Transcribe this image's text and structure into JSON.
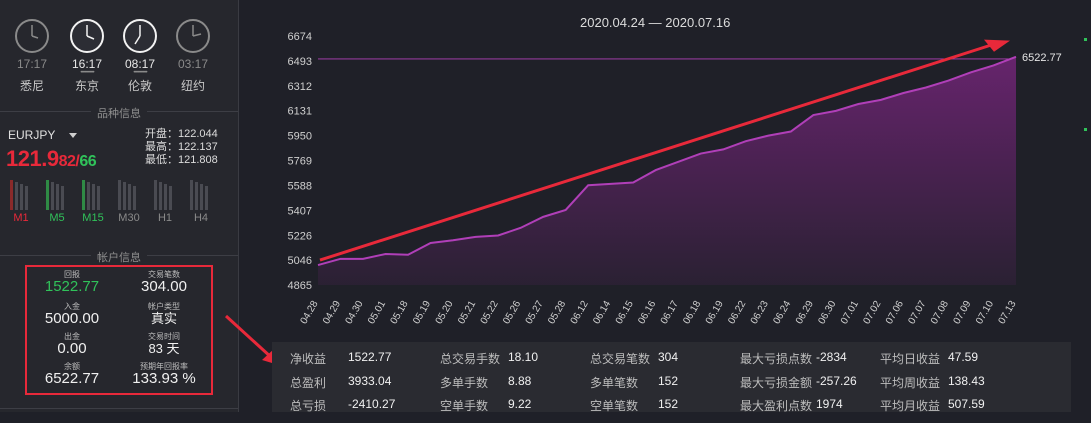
{
  "clocks": [
    {
      "time": "17:17",
      "city": "悉尼",
      "active": false
    },
    {
      "time": "16:17",
      "city": "东京",
      "active": true
    },
    {
      "time": "08:17",
      "city": "伦敦",
      "active": true
    },
    {
      "time": "03:17",
      "city": "纽约",
      "active": false
    }
  ],
  "sections": {
    "instrument": "品种信息",
    "account": "帐户信息"
  },
  "instrument": {
    "symbol": "EURJPY",
    "price_main": "121.9",
    "price_bid_tail": "82",
    "price_sep": "/",
    "price_ask_tail": "66",
    "open": "开盘：122.044",
    "high": "最高：122.137",
    "low": "最低：121.808",
    "timeframes": [
      {
        "label": "M1",
        "color": "#e8293a"
      },
      {
        "label": "M5",
        "color": "#30c25a"
      },
      {
        "label": "M15",
        "color": "#30c25a"
      },
      {
        "label": "M30",
        "color": "#8a8a8a"
      },
      {
        "label": "H1",
        "color": "#8a8a8a"
      },
      {
        "label": "H4",
        "color": "#8a8a8a"
      }
    ]
  },
  "account": {
    "profit_label": "回报",
    "profit": "1522.77",
    "trades_label": "交易笔数",
    "trades": "304.00",
    "deposit_label": "入金",
    "deposit": "5000.00",
    "type_label": "帐户类型",
    "type": "真实",
    "withdraw_label": "出金",
    "withdraw": "0.00",
    "time_label": "交易时间",
    "time": "83 天",
    "balance_label": "余额",
    "balance": "6522.77",
    "annual_label": "预期年回报率",
    "annual": "133.93 %"
  },
  "chart_data": {
    "type": "area",
    "title": "2020.04.24 — 2020.07.16",
    "ylim": [
      4865,
      6674
    ],
    "yticks": [
      4865,
      5046,
      5226,
      5407,
      5588,
      5769,
      5950,
      6131,
      6312,
      6493,
      6674
    ],
    "categories": [
      "04.28",
      "04.29",
      "04.30",
      "05.01",
      "05.18",
      "05.19",
      "05.20",
      "05.21",
      "05.22",
      "05.26",
      "05.27",
      "05.28",
      "06.12",
      "06.14",
      "06.15",
      "06.16",
      "06.17",
      "06.18",
      "06.19",
      "06.22",
      "06.23",
      "06.24",
      "06.29",
      "06.30",
      "07.01",
      "07.02",
      "07.06",
      "07.07",
      "07.08",
      "07.09",
      "07.10",
      "07.13"
    ],
    "series": [
      {
        "values": [
          5010,
          5055,
          5055,
          5090,
          5085,
          5170,
          5190,
          5215,
          5225,
          5280,
          5360,
          5410,
          5590,
          5600,
          5610,
          5700,
          5760,
          5820,
          5850,
          5910,
          5950,
          5980,
          6100,
          6130,
          6180,
          6210,
          6260,
          6300,
          6350,
          6410,
          6460,
          6522.77
        ]
      }
    ],
    "last_label": "6522.77",
    "line_color": "#b03fb8",
    "fill_color": "#6a2470",
    "arrow_color": "#e8293a"
  },
  "stats": [
    {
      "label": "净收益",
      "value": "1522.77"
    },
    {
      "label": "总交易手数",
      "value": "18.10"
    },
    {
      "label": "总交易笔数",
      "value": "304"
    },
    {
      "label": "最大亏损点数",
      "value": "-2834"
    },
    {
      "label": "平均日收益",
      "value": "47.59"
    },
    {
      "label": "总盈利",
      "value": "3933.04"
    },
    {
      "label": "多单手数",
      "value": "8.88"
    },
    {
      "label": "多单笔数",
      "value": "152"
    },
    {
      "label": "最大亏损金额",
      "value": "-257.26"
    },
    {
      "label": "平均周收益",
      "value": "138.43"
    },
    {
      "label": "总亏损",
      "value": "-2410.27"
    },
    {
      "label": "空单手数",
      "value": "9.22"
    },
    {
      "label": "空单笔数",
      "value": "152"
    },
    {
      "label": "最大盈利点数",
      "value": "1974"
    },
    {
      "label": "平均月收益",
      "value": "507.59"
    }
  ]
}
